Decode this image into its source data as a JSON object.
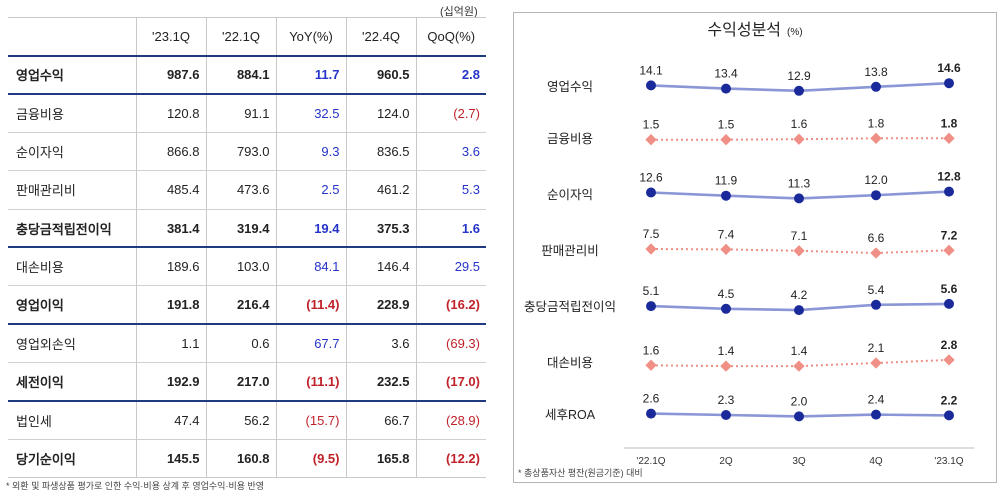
{
  "table": {
    "unit": "(십억원)",
    "headers": [
      "",
      "'23.1Q",
      "'22.1Q",
      "YoY(%)",
      "'22.4Q",
      "QoQ(%)"
    ],
    "rows": [
      {
        "label": "영업수익",
        "v1": "987.6",
        "v2": "884.1",
        "yoy": "11.7",
        "v3": "960.5",
        "qoq": "2.8",
        "bold": true
      },
      {
        "label": "금융비용",
        "v1": "120.8",
        "v2": "91.1",
        "yoy": "32.5",
        "v3": "124.0",
        "qoq": "(2.7)",
        "bold": false
      },
      {
        "label": "순이자익",
        "v1": "866.8",
        "v2": "793.0",
        "yoy": "9.3",
        "v3": "836.5",
        "qoq": "3.6",
        "bold": false
      },
      {
        "label": "판매관리비",
        "v1": "485.4",
        "v2": "473.6",
        "yoy": "2.5",
        "v3": "461.2",
        "qoq": "5.3",
        "bold": false
      },
      {
        "label": "충당금적립전이익",
        "v1": "381.4",
        "v2": "319.4",
        "yoy": "19.4",
        "v3": "375.3",
        "qoq": "1.6",
        "bold": true
      },
      {
        "label": "대손비용",
        "v1": "189.6",
        "v2": "103.0",
        "yoy": "84.1",
        "v3": "146.4",
        "qoq": "29.5",
        "bold": false
      },
      {
        "label": "영업이익",
        "v1": "191.8",
        "v2": "216.4",
        "yoy": "(11.4)",
        "v3": "228.9",
        "qoq": "(16.2)",
        "bold": true
      },
      {
        "label": "영업외손익",
        "v1": "1.1",
        "v2": "0.6",
        "yoy": "67.7",
        "v3": "3.6",
        "qoq": "(69.3)",
        "bold": false
      },
      {
        "label": "세전이익",
        "v1": "192.9",
        "v2": "217.0",
        "yoy": "(11.1)",
        "v3": "232.5",
        "qoq": "(17.0)",
        "bold": true
      },
      {
        "label": "법인세",
        "v1": "47.4",
        "v2": "56.2",
        "yoy": "(15.7)",
        "v3": "66.7",
        "qoq": "(28.9)",
        "bold": false
      },
      {
        "label": "당기순이익",
        "v1": "145.5",
        "v2": "160.8",
        "yoy": "(9.5)",
        "v3": "165.8",
        "qoq": "(12.2)",
        "bold": true
      }
    ],
    "footnote": "* 외환 및 파생상품 평가로 인한 수익·비용 상계 후 영업수익·비용 반영"
  },
  "colors": {
    "header_rule": "#1f3b80",
    "positive": "#2533c9",
    "negative": "#c0222a",
    "solid_series": "#8a96d6",
    "solid_marker": "#1a2a9a",
    "dotted_series": "#f08f85",
    "dotted_marker": "#f08f85"
  },
  "chart_data": {
    "type": "line",
    "title": "수익성분석",
    "title_unit": "(%)",
    "x": [
      "'22.1Q",
      "2Q",
      "3Q",
      "4Q",
      "'23.1Q"
    ],
    "series": [
      {
        "name": "영업수익",
        "style": "solid",
        "values": [
          14.1,
          13.4,
          12.9,
          13.8,
          14.6
        ]
      },
      {
        "name": "금융비용",
        "style": "dotted",
        "values": [
          1.5,
          1.5,
          1.6,
          1.8,
          1.8
        ]
      },
      {
        "name": "순이자익",
        "style": "solid",
        "values": [
          12.6,
          11.9,
          11.3,
          12.0,
          12.8
        ]
      },
      {
        "name": "판매관리비",
        "style": "dotted",
        "values": [
          7.5,
          7.4,
          7.1,
          6.6,
          7.2
        ]
      },
      {
        "name": "충당금적립전이익",
        "style": "solid",
        "values": [
          5.1,
          4.5,
          4.2,
          5.4,
          5.6
        ]
      },
      {
        "name": "대손비용",
        "style": "dotted",
        "values": [
          1.6,
          1.4,
          1.4,
          2.1,
          2.8
        ]
      },
      {
        "name": "세후ROA",
        "style": "solid",
        "values": [
          2.6,
          2.3,
          2.0,
          2.4,
          2.2
        ]
      }
    ],
    "footnote": "* 총상품자산 평잔(원금기준) 대비"
  }
}
